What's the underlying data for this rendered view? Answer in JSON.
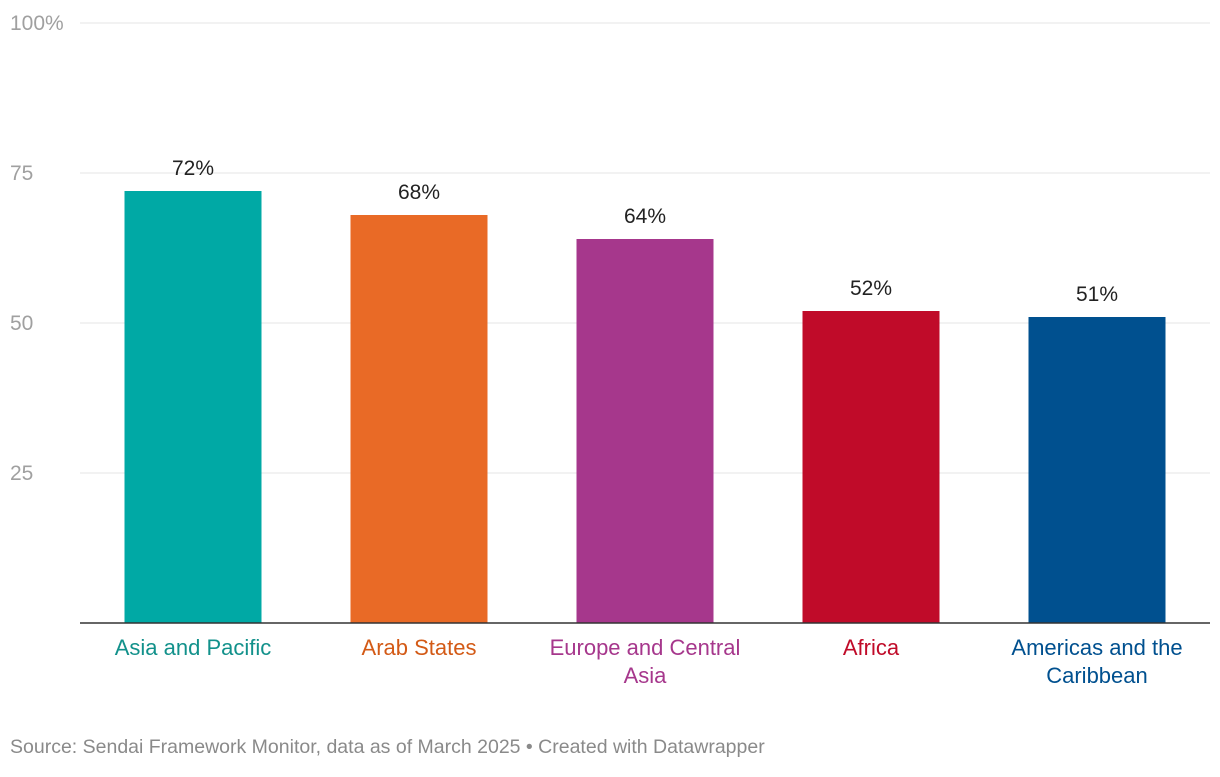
{
  "chart_data": {
    "type": "bar",
    "categories": [
      "Asia and Pacific",
      "Arab States",
      "Europe and Central Asia",
      "Africa",
      "Americas and the Caribbean"
    ],
    "category_lines": [
      [
        "Asia and Pacific"
      ],
      [
        "Arab States"
      ],
      [
        "Europe and Central",
        "Asia"
      ],
      [
        "Africa"
      ],
      [
        "Americas and the",
        "Caribbean"
      ]
    ],
    "values": [
      72,
      68,
      64,
      52,
      51
    ],
    "value_labels": [
      "72%",
      "68%",
      "64%",
      "52%",
      "51%"
    ],
    "colors": [
      "#00a9a5",
      "#e96a26",
      "#a6378c",
      "#c00b29",
      "#00508f"
    ],
    "label_colors": [
      "#12918b",
      "#d35a16",
      "#a6378c",
      "#c00b29",
      "#00508f"
    ],
    "ylim": [
      0,
      100
    ],
    "yticks": [
      25,
      50,
      75,
      100
    ],
    "ytick_labels": [
      "25",
      "50",
      "75",
      "100%"
    ],
    "grid": true,
    "legend": "none"
  },
  "footer": {
    "source": "Source: Sendai Framework Monitor, data as of March 2025 • Created with Datawrapper"
  }
}
